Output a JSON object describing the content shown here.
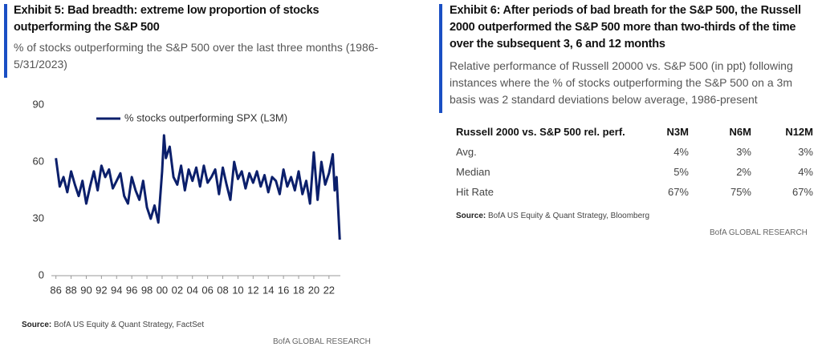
{
  "exhibit5": {
    "title": "Exhibit 5: Bad breadth: extreme low proportion of stocks outperforming the S&P 500",
    "subtitle": "% of stocks outperforming the S&P 500 over the last three months (1986-5/31/2023)",
    "source_label": "Source:",
    "source": "BofA US Equity & Quant Strategy, FactSet",
    "footer": "BofA GLOBAL RESEARCH"
  },
  "chart_data": {
    "type": "line",
    "x": [
      1986.0,
      1986.5,
      1987.0,
      1987.5,
      1988.0,
      1988.5,
      1989.0,
      1989.5,
      1990.0,
      1990.5,
      1991.0,
      1991.5,
      1992.0,
      1992.5,
      1993.0,
      1993.5,
      1994.0,
      1994.5,
      1995.0,
      1995.5,
      1996.0,
      1996.5,
      1997.0,
      1997.5,
      1998.0,
      1998.5,
      1999.0,
      1999.5,
      2000.0,
      2000.25,
      2000.5,
      2001.0,
      2001.5,
      2002.0,
      2002.5,
      2003.0,
      2003.5,
      2004.0,
      2004.5,
      2005.0,
      2005.5,
      2006.0,
      2006.5,
      2007.0,
      2007.5,
      2008.0,
      2008.5,
      2009.0,
      2009.5,
      2010.0,
      2010.5,
      2011.0,
      2011.5,
      2012.0,
      2012.5,
      2013.0,
      2013.5,
      2014.0,
      2014.5,
      2015.0,
      2015.5,
      2016.0,
      2016.5,
      2017.0,
      2017.5,
      2018.0,
      2018.5,
      2019.0,
      2019.5,
      2020.0,
      2020.5,
      2021.0,
      2021.5,
      2022.0,
      2022.5,
      2022.75,
      2023.0,
      2023.42
    ],
    "series": [
      {
        "name": "% stocks outperforming SPX (L3M)",
        "color": "#0b1f6b",
        "values": [
          62,
          47,
          52,
          44,
          55,
          48,
          42,
          50,
          38,
          47,
          55,
          45,
          58,
          52,
          56,
          46,
          50,
          54,
          42,
          38,
          52,
          45,
          40,
          50,
          36,
          30,
          37,
          28,
          55,
          74,
          62,
          68,
          52,
          48,
          58,
          45,
          56,
          50,
          57,
          47,
          58,
          49,
          52,
          56,
          43,
          57,
          48,
          40,
          60,
          51,
          55,
          46,
          54,
          49,
          55,
          47,
          53,
          44,
          52,
          50,
          43,
          56,
          47,
          52,
          45,
          55,
          43,
          50,
          38,
          65,
          40,
          60,
          48,
          54,
          64,
          45,
          52,
          19
        ]
      }
    ],
    "xlim": [
      1985.4,
      2023.5
    ],
    "xticks": [
      {
        "value": 1986,
        "label": "86"
      },
      {
        "value": 1988,
        "label": "88"
      },
      {
        "value": 1990,
        "label": "90"
      },
      {
        "value": 1992,
        "label": "92"
      },
      {
        "value": 1994,
        "label": "94"
      },
      {
        "value": 1996,
        "label": "96"
      },
      {
        "value": 1998,
        "label": "98"
      },
      {
        "value": 2000,
        "label": "00"
      },
      {
        "value": 2002,
        "label": "02"
      },
      {
        "value": 2004,
        "label": "04"
      },
      {
        "value": 2006,
        "label": "06"
      },
      {
        "value": 2008,
        "label": "08"
      },
      {
        "value": 2010,
        "label": "10"
      },
      {
        "value": 2012,
        "label": "12"
      },
      {
        "value": 2014,
        "label": "14"
      },
      {
        "value": 2016,
        "label": "16"
      },
      {
        "value": 2018,
        "label": "18"
      },
      {
        "value": 2020,
        "label": "20"
      },
      {
        "value": 2022,
        "label": "22"
      }
    ],
    "ylim": [
      0,
      90
    ],
    "yticks": [
      0,
      30,
      60,
      90
    ],
    "grid": false
  },
  "exhibit6": {
    "title": "Exhibit 6: After periods of bad breath for the S&P 500, the Russell 2000 outperformed the S&P 500 more than two-thirds of the time over the subsequent 3, 6 and 12 months",
    "subtitle": "Relative performance of Russell 20000 vs. S&P 500 (in ppt) following instances where the % of stocks outperforming the S&P 500 on a 3m basis was 2 standard deviations below average, 1986-present",
    "table": {
      "header": [
        "Russell 2000 vs. S&P 500 rel. perf.",
        "N3M",
        "N6M",
        "N12M"
      ],
      "rows": [
        [
          "Avg.",
          "4%",
          "3%",
          "3%"
        ],
        [
          "Median",
          "5%",
          "2%",
          "4%"
        ],
        [
          "Hit Rate",
          "67%",
          "75%",
          "67%"
        ]
      ]
    },
    "source_label": "Source:",
    "source": "BofA US Equity & Quant Strategy, Bloomberg",
    "footer": "BofA GLOBAL RESEARCH"
  }
}
